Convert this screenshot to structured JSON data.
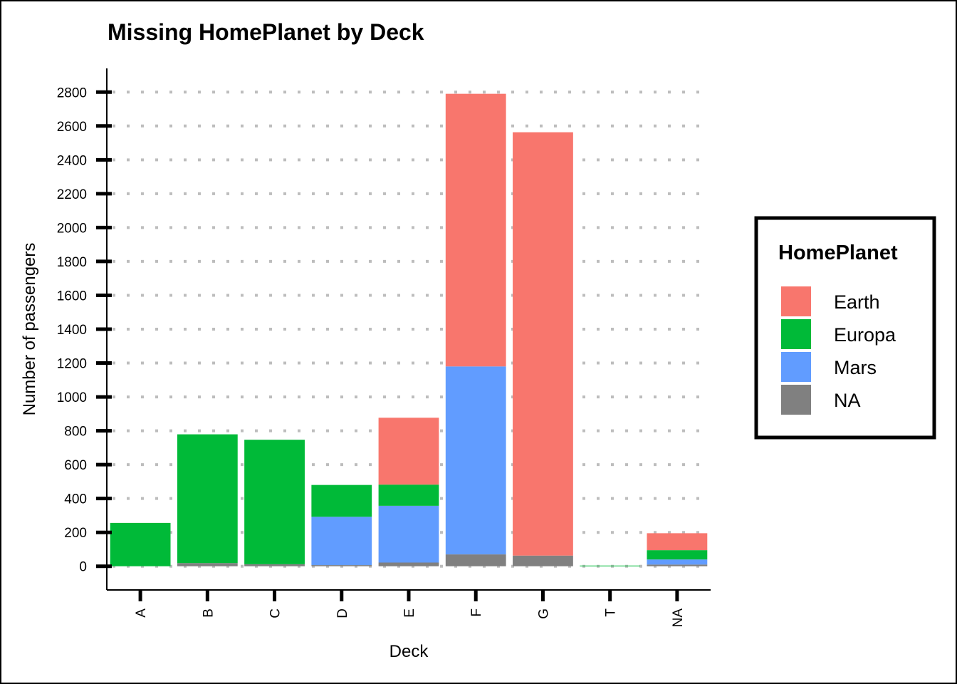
{
  "chart_data": {
    "type": "bar",
    "stacked": true,
    "title": "Missing HomePlanet by Deck",
    "xlabel": "Deck",
    "ylabel": "Number of passengers",
    "categories": [
      "A",
      "B",
      "C",
      "D",
      "E",
      "F",
      "G",
      "T",
      "NA"
    ],
    "yticks": [
      "0",
      "200",
      "400",
      "600",
      "800",
      "1000",
      "1200",
      "1400",
      "1600",
      "1800",
      "2000",
      "2200",
      "2400",
      "2600",
      "2800"
    ],
    "ylim": [
      -140,
      2940
    ],
    "grid": "horizontal dotted",
    "stack_order_bottom_to_top": [
      "NA",
      "Mars",
      "Europa",
      "Earth"
    ],
    "series": [
      {
        "name": "Earth",
        "color": "#F8766D",
        "values": [
          0,
          0,
          0,
          0,
          395,
          1610,
          2500,
          0,
          100
        ]
      },
      {
        "name": "Europa",
        "color": "#00BA38",
        "values": [
          256,
          760,
          735,
          188,
          125,
          0,
          0,
          4,
          55
        ]
      },
      {
        "name": "Mars",
        "color": "#619CFF",
        "values": [
          0,
          0,
          0,
          285,
          335,
          1110,
          0,
          0,
          30
        ]
      },
      {
        "name": "NA",
        "color": "#808080",
        "values": [
          0,
          19,
          12,
          7,
          22,
          70,
          63,
          0,
          10
        ]
      }
    ],
    "legend": {
      "title": "HomePlanet",
      "position": "right",
      "items": [
        {
          "label": "Earth",
          "color": "#F8766D"
        },
        {
          "label": "Europa",
          "color": "#00BA38"
        },
        {
          "label": "Mars",
          "color": "#619CFF"
        },
        {
          "label": "NA",
          "color": "#808080"
        }
      ]
    }
  }
}
